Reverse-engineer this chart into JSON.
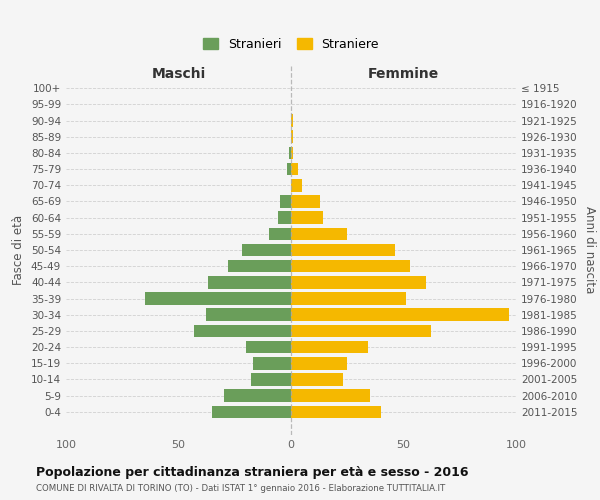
{
  "age_groups": [
    "100+",
    "95-99",
    "90-94",
    "85-89",
    "80-84",
    "75-79",
    "70-74",
    "65-69",
    "60-64",
    "55-59",
    "50-54",
    "45-49",
    "40-44",
    "35-39",
    "30-34",
    "25-29",
    "20-24",
    "15-19",
    "10-14",
    "5-9",
    "0-4"
  ],
  "birth_years": [
    "≤ 1915",
    "1916-1920",
    "1921-1925",
    "1926-1930",
    "1931-1935",
    "1936-1940",
    "1941-1945",
    "1946-1950",
    "1951-1955",
    "1956-1960",
    "1961-1965",
    "1966-1970",
    "1971-1975",
    "1976-1980",
    "1981-1985",
    "1986-1990",
    "1991-1995",
    "1996-2000",
    "2001-2005",
    "2006-2010",
    "2011-2015"
  ],
  "maschi": [
    0,
    0,
    0,
    0,
    1,
    2,
    0,
    5,
    6,
    10,
    22,
    28,
    37,
    65,
    38,
    43,
    20,
    17,
    18,
    30,
    35
  ],
  "femmine": [
    0,
    0,
    1,
    1,
    1,
    3,
    5,
    13,
    14,
    25,
    46,
    53,
    60,
    51,
    97,
    62,
    34,
    25,
    23,
    35,
    40
  ],
  "color_maschi": "#6a9e5a",
  "color_femmine": "#f5b800",
  "title": "Popolazione per cittadinanza straniera per età e sesso - 2016",
  "subtitle": "COMUNE DI RIVALTA DI TORINO (TO) - Dati ISTAT 1° gennaio 2016 - Elaborazione TUTTITALIA.IT",
  "xlabel_left": "Maschi",
  "xlabel_right": "Femmine",
  "ylabel_left": "Fasce di età",
  "ylabel_right": "Anni di nascita",
  "legend_maschi": "Stranieri",
  "legend_femmine": "Straniere",
  "xlim": 100,
  "background_color": "#f5f5f5",
  "grid_color": "#cccccc"
}
